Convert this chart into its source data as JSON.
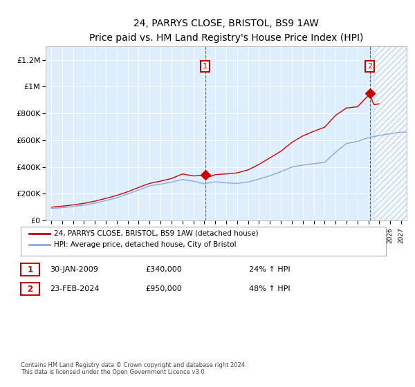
{
  "title": "24, PARRYS CLOSE, BRISTOL, BS9 1AW",
  "subtitle": "Price paid vs. HM Land Registry's House Price Index (HPI)",
  "ylim": [
    0,
    1300000
  ],
  "yticks": [
    0,
    200000,
    400000,
    600000,
    800000,
    1000000,
    1200000
  ],
  "transaction1": {
    "date": "30-JAN-2009",
    "price": 340000,
    "hpi_pct": "24%",
    "label": "1",
    "x": 2009.08
  },
  "transaction2": {
    "date": "23-FEB-2024",
    "price": 950000,
    "hpi_pct": "48%",
    "label": "2",
    "x": 2024.13
  },
  "legend_line1": "24, PARRYS CLOSE, BRISTOL, BS9 1AW (detached house)",
  "legend_line2": "HPI: Average price, detached house, City of Bristol",
  "footnote": "Contains HM Land Registry data © Crown copyright and database right 2024.\nThis data is licensed under the Open Government Licence v3.0.",
  "line_color_price": "#cc0000",
  "line_color_hpi": "#88aadd",
  "chart_bg_color": "#ddeeff",
  "bg_color": "#ffffff",
  "grid_color": "#ffffff",
  "annotation_box_color": "#cc0000",
  "hatch_start": 2024.5,
  "xmin": 1994.5,
  "xmax": 2027.5
}
